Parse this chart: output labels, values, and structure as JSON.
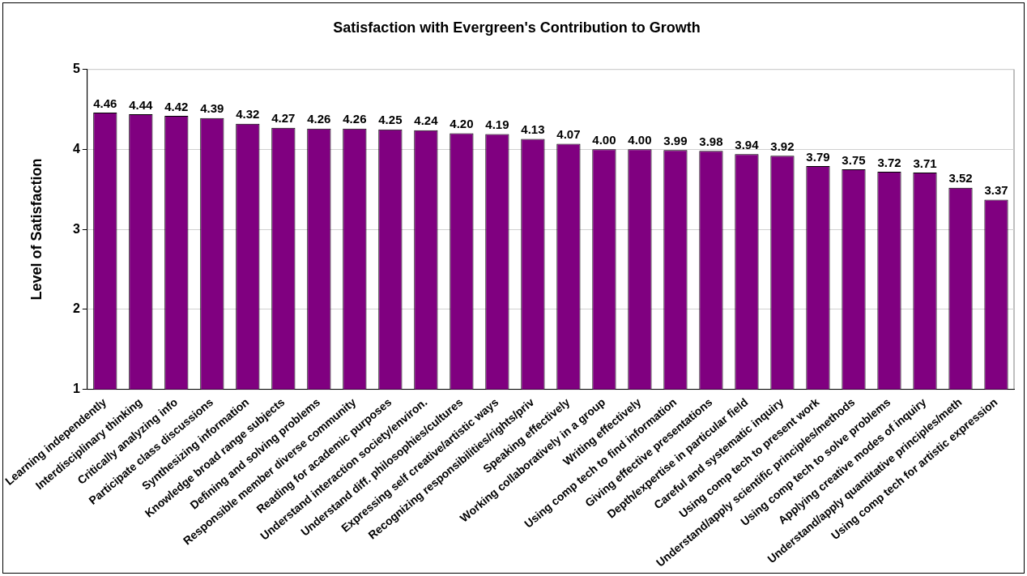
{
  "chart_data": {
    "type": "bar",
    "title": "Satisfaction with Evergreen's Contribution to Growth",
    "ylabel": "Level of Satisfaction",
    "categories": [
      "Learning independently",
      "Interdisciplinary thinking",
      "Critically analyzing info",
      "Participate class discussions",
      "Synthesizing information",
      "Knowledge broad range subjects",
      "Defining and solving problems",
      "Responsible member diverse community",
      "Reading for academic purposes",
      "Understand interaction society/environ.",
      "Understand diff. philosophies/cultures",
      "Expressing self creative/artistic ways",
      "Recognizing responsibilities/rights/priv",
      "Speaking effectively",
      "Working collaboratively in a group",
      "Writing effectively",
      "Using comp tech to find information",
      "Giving effective presentations",
      "Depth/expertise in particular field",
      "Careful and systematic inquiry",
      "Using comp tech to present work",
      "Understand/apply scientific principles/methods",
      "Using comp tech to solve problems",
      "Applying creative modes of inquiry",
      "Understand/apply quantitative principles/meth",
      "Using comp tech for artistic expression"
    ],
    "values": [
      4.46,
      4.44,
      4.42,
      4.39,
      4.32,
      4.27,
      4.26,
      4.26,
      4.25,
      4.24,
      4.2,
      4.19,
      4.13,
      4.07,
      4.0,
      4.0,
      3.99,
      3.98,
      3.94,
      3.92,
      3.79,
      3.75,
      3.72,
      3.71,
      3.52,
      3.37
    ],
    "value_labels": [
      "4.46",
      "4.44",
      "4.42",
      "4.39",
      "4.32",
      "4.27",
      "4.26",
      "4.26",
      "4.25",
      "4.24",
      "4.20",
      "4.19",
      "4.13",
      "4.07",
      "4.00",
      "4.00",
      "3.99",
      "3.98",
      "3.94",
      "3.92",
      "3.79",
      "3.75",
      "3.72",
      "3.71",
      "3.52",
      "3.37"
    ],
    "color": "#800080",
    "ylim": [
      1,
      5
    ],
    "yticks": [
      1,
      2,
      3,
      4,
      5
    ],
    "grid": "y"
  }
}
